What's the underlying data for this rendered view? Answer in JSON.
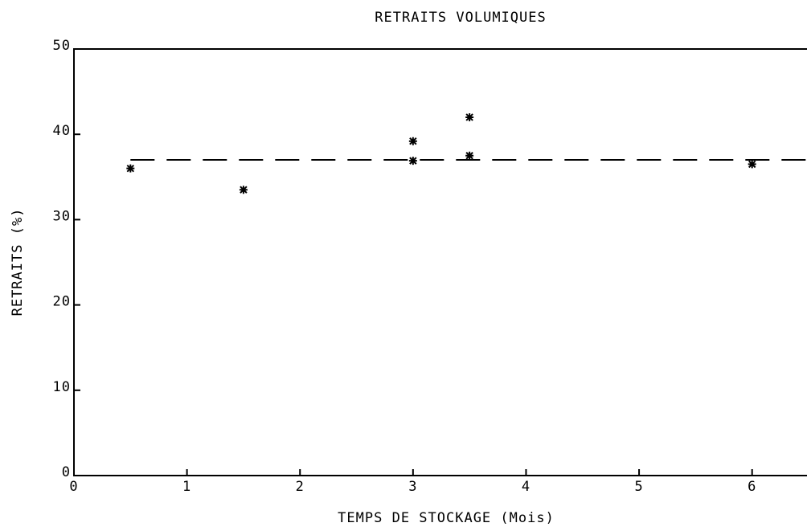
{
  "chart_data": {
    "type": "scatter",
    "title": "RETRAITS VOLUMIQUES",
    "x_label": "TEMPS DE STOCKAGE (Mois)",
    "y_label": "RETRAITS (%)",
    "series": [
      {
        "color": "#000000",
        "x": [
          0.5,
          1.5,
          3,
          3,
          3.5,
          3.5,
          6
        ],
        "values": [
          36,
          33.5,
          39.2,
          36.9,
          42,
          37.5,
          36.5
        ]
      }
    ],
    "reference_line": {
      "color": "#000000",
      "dashed": true,
      "x": [
        0.5,
        6.5
      ],
      "values": [
        37,
        37
      ]
    },
    "xlim": [
      0,
      6.5
    ],
    "xticks": [
      0,
      1,
      2,
      3,
      4,
      5,
      6
    ],
    "ylim": [
      0,
      50
    ],
    "yticks": [
      0,
      10,
      20,
      30,
      40,
      50
    ],
    "grid": false
  }
}
